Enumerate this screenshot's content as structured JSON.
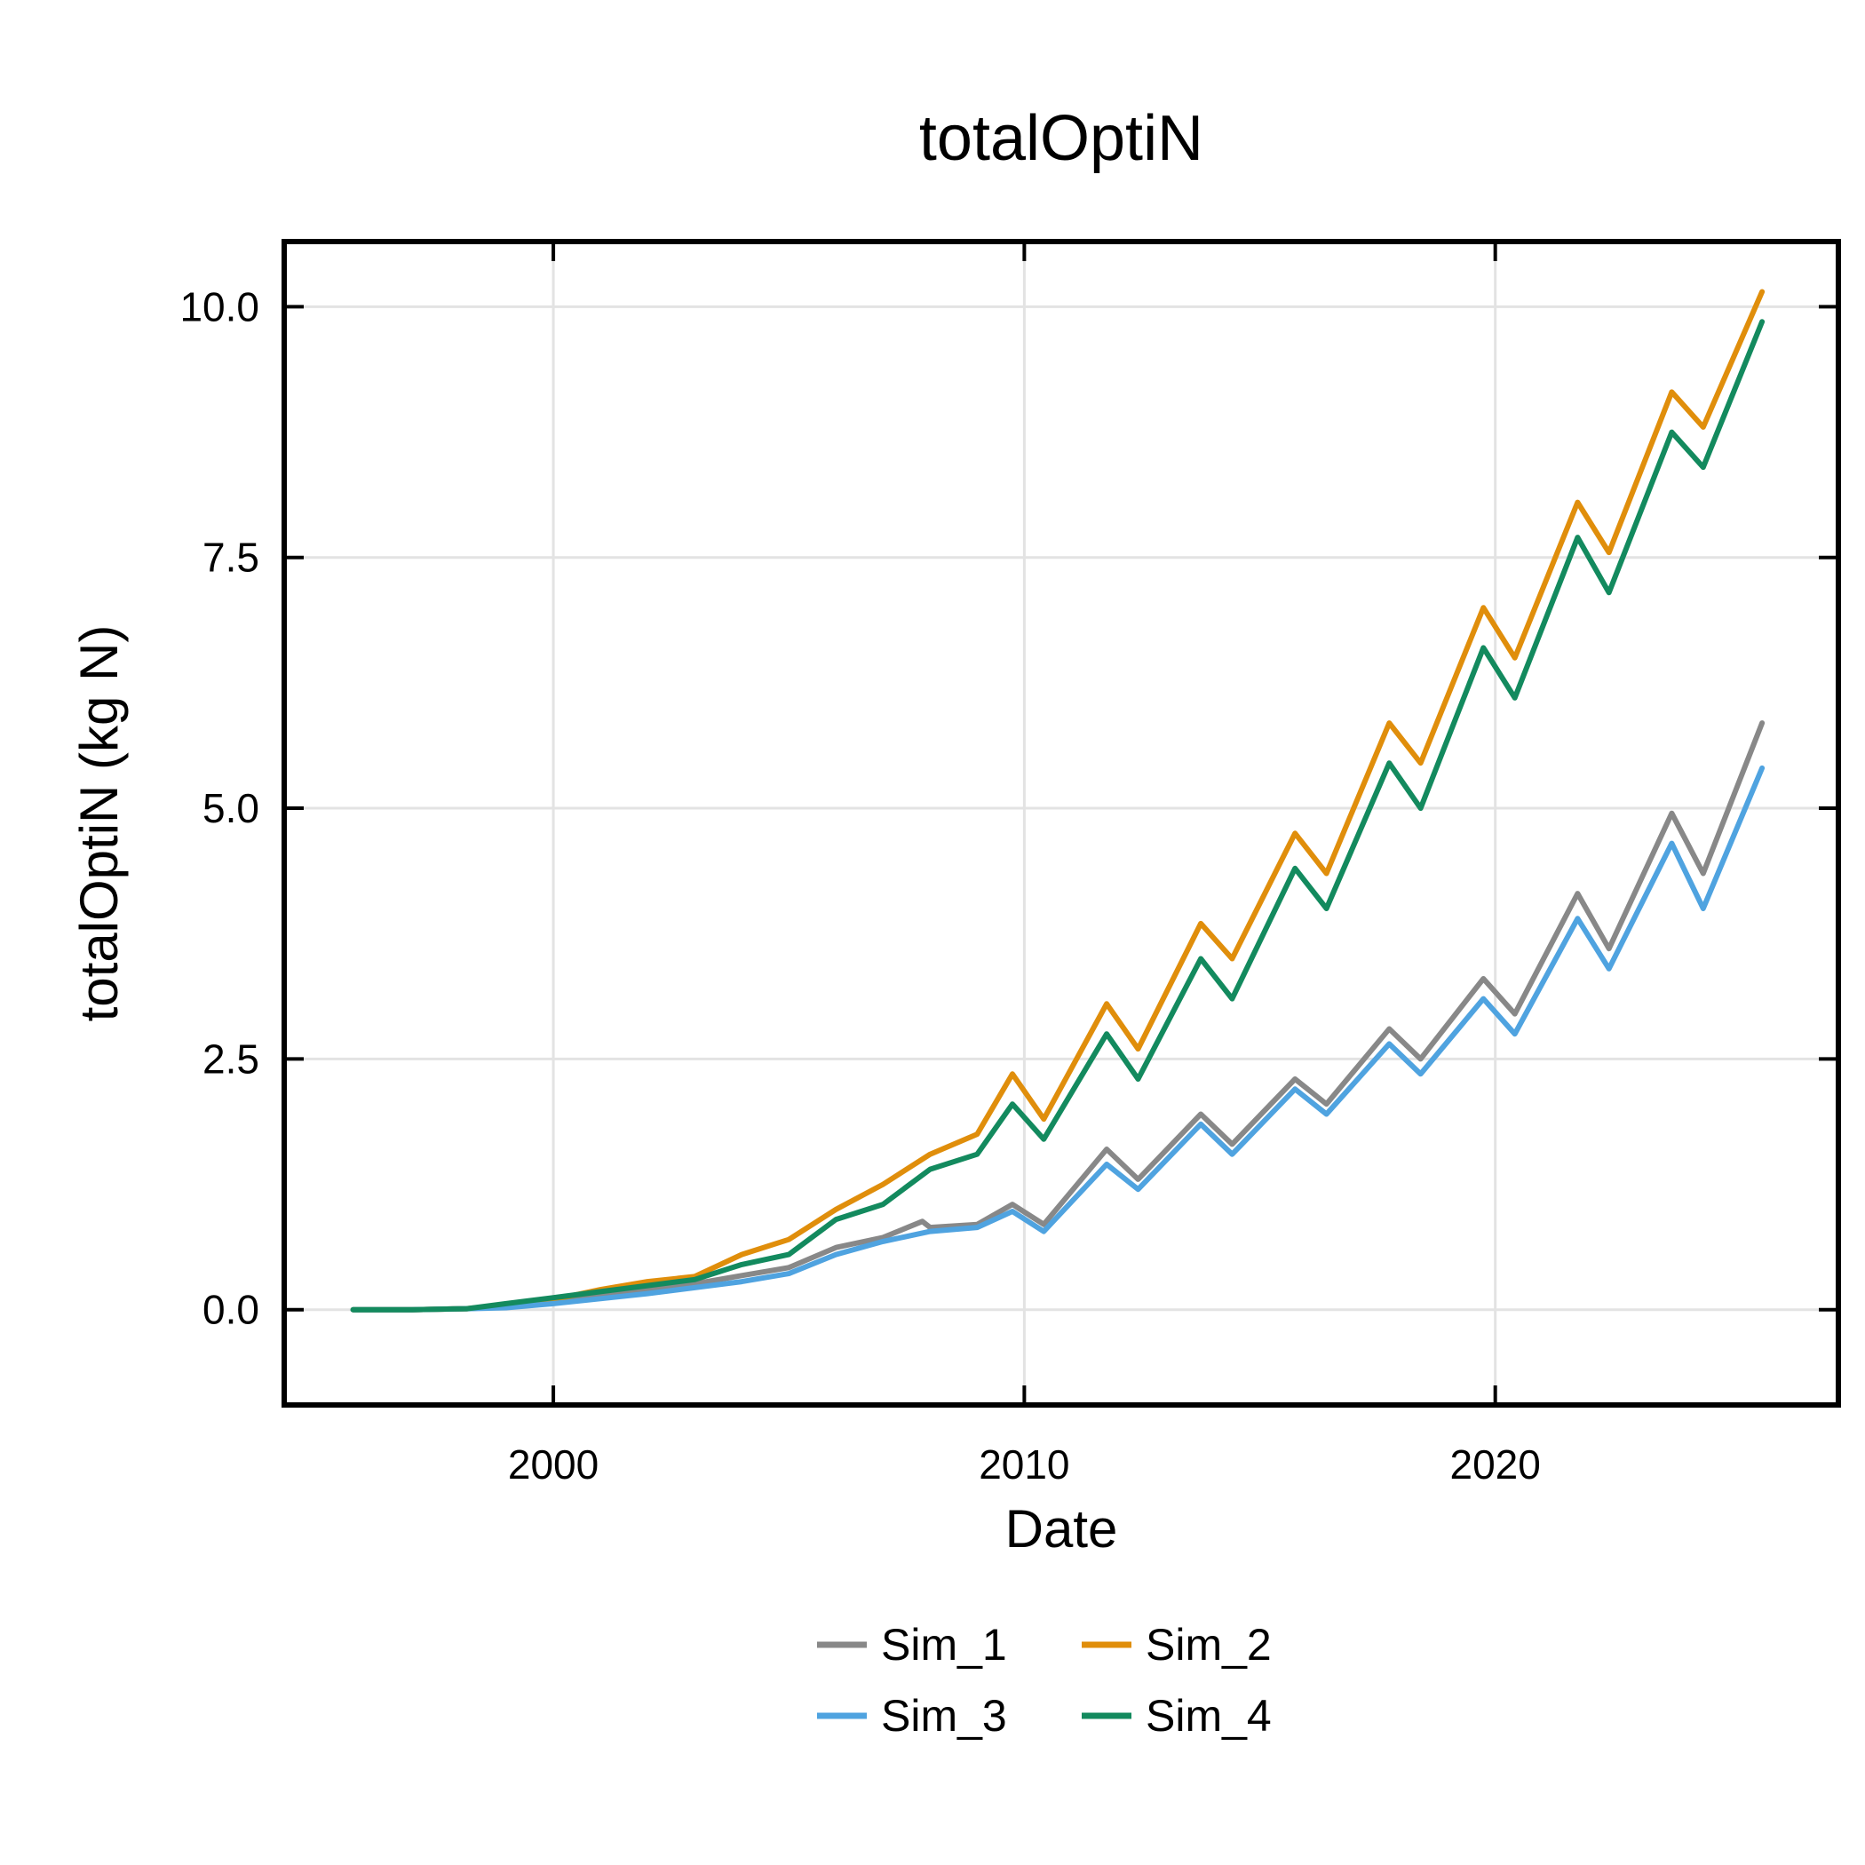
{
  "chart_data": {
    "type": "line",
    "title": "totalOptiN",
    "xlabel": "Date",
    "ylabel": "totalOptiN (kg N)",
    "x_axis": {
      "type": "date",
      "range": [
        "1994-04-15",
        "2027-04-15"
      ],
      "ticks": [
        "2000",
        "2010",
        "2020"
      ]
    },
    "y_axis": {
      "range": [
        -0.95,
        10.65
      ],
      "ticks": [
        "0.0",
        "2.5",
        "5.0",
        "7.5",
        "10.0"
      ]
    },
    "grid": true,
    "legend": {
      "position": "bottom-center",
      "columns": 2
    },
    "series": [
      {
        "name": "Sim_1",
        "color": "#888888",
        "points": [
          [
            "1995-10-01",
            0.0
          ],
          [
            "1997-01-01",
            0.0
          ],
          [
            "1998-03-01",
            0.01
          ],
          [
            "1999-01-01",
            0.03
          ],
          [
            "2000-01-01",
            0.08
          ],
          [
            "2001-01-01",
            0.13
          ],
          [
            "2002-01-01",
            0.2
          ],
          [
            "2003-01-01",
            0.26
          ],
          [
            "2004-01-01",
            0.34
          ],
          [
            "2005-01-01",
            0.42
          ],
          [
            "2006-01-01",
            0.62
          ],
          [
            "2007-01-01",
            0.72
          ],
          [
            "2007-11-01",
            0.88
          ],
          [
            "2008-01-01",
            0.82
          ],
          [
            "2009-01-01",
            0.85
          ],
          [
            "2009-10-01",
            1.05
          ],
          [
            "2010-06-01",
            0.85
          ],
          [
            "2011-10-01",
            1.6
          ],
          [
            "2012-06-01",
            1.3
          ],
          [
            "2013-10-01",
            1.95
          ],
          [
            "2014-06-01",
            1.65
          ],
          [
            "2015-10-01",
            2.3
          ],
          [
            "2016-06-01",
            2.05
          ],
          [
            "2017-10-01",
            2.8
          ],
          [
            "2018-06-01",
            2.5
          ],
          [
            "2019-10-01",
            3.3
          ],
          [
            "2020-06-01",
            2.95
          ],
          [
            "2021-10-01",
            4.15
          ],
          [
            "2022-06-01",
            3.6
          ],
          [
            "2023-10-01",
            4.95
          ],
          [
            "2024-06-01",
            4.35
          ],
          [
            "2025-09-01",
            5.85
          ]
        ]
      },
      {
        "name": "Sim_2",
        "color": "#E08E0B",
        "points": [
          [
            "1995-10-01",
            0.0
          ],
          [
            "1997-01-01",
            0.0
          ],
          [
            "1998-03-01",
            0.01
          ],
          [
            "1999-01-01",
            0.05
          ],
          [
            "2000-01-01",
            0.1
          ],
          [
            "2001-01-01",
            0.2
          ],
          [
            "2002-01-01",
            0.28
          ],
          [
            "2003-01-01",
            0.33
          ],
          [
            "2004-01-01",
            0.55
          ],
          [
            "2005-01-01",
            0.7
          ],
          [
            "2006-01-01",
            1.0
          ],
          [
            "2007-01-01",
            1.25
          ],
          [
            "2008-01-01",
            1.55
          ],
          [
            "2009-01-01",
            1.75
          ],
          [
            "2009-10-01",
            2.35
          ],
          [
            "2010-06-01",
            1.9
          ],
          [
            "2011-10-01",
            3.05
          ],
          [
            "2012-06-01",
            2.6
          ],
          [
            "2013-10-01",
            3.85
          ],
          [
            "2014-06-01",
            3.5
          ],
          [
            "2015-10-01",
            4.75
          ],
          [
            "2016-06-01",
            4.35
          ],
          [
            "2017-10-01",
            5.85
          ],
          [
            "2018-06-01",
            5.45
          ],
          [
            "2019-10-01",
            7.0
          ],
          [
            "2020-06-01",
            6.5
          ],
          [
            "2021-10-01",
            8.05
          ],
          [
            "2022-06-01",
            7.55
          ],
          [
            "2023-10-01",
            9.15
          ],
          [
            "2024-06-01",
            8.8
          ],
          [
            "2025-09-01",
            10.15
          ]
        ]
      },
      {
        "name": "Sim_3",
        "color": "#4FA3E0",
        "points": [
          [
            "1995-10-01",
            0.0
          ],
          [
            "1997-01-01",
            0.0
          ],
          [
            "1998-03-01",
            0.01
          ],
          [
            "1999-01-01",
            0.02
          ],
          [
            "2000-01-01",
            0.06
          ],
          [
            "2001-01-01",
            0.11
          ],
          [
            "2002-01-01",
            0.16
          ],
          [
            "2003-01-01",
            0.22
          ],
          [
            "2004-01-01",
            0.28
          ],
          [
            "2005-01-01",
            0.36
          ],
          [
            "2006-01-01",
            0.55
          ],
          [
            "2007-01-01",
            0.68
          ],
          [
            "2008-01-01",
            0.78
          ],
          [
            "2009-01-01",
            0.82
          ],
          [
            "2009-10-01",
            0.98
          ],
          [
            "2010-06-01",
            0.78
          ],
          [
            "2011-10-01",
            1.45
          ],
          [
            "2012-06-01",
            1.2
          ],
          [
            "2013-10-01",
            1.85
          ],
          [
            "2014-06-01",
            1.55
          ],
          [
            "2015-10-01",
            2.2
          ],
          [
            "2016-06-01",
            1.95
          ],
          [
            "2017-10-01",
            2.65
          ],
          [
            "2018-06-01",
            2.35
          ],
          [
            "2019-10-01",
            3.1
          ],
          [
            "2020-06-01",
            2.75
          ],
          [
            "2021-10-01",
            3.9
          ],
          [
            "2022-06-01",
            3.4
          ],
          [
            "2023-10-01",
            4.65
          ],
          [
            "2024-06-01",
            4.0
          ],
          [
            "2025-09-01",
            5.4
          ]
        ]
      },
      {
        "name": "Sim_4",
        "color": "#138A5E",
        "points": [
          [
            "1995-10-01",
            0.0
          ],
          [
            "1997-01-01",
            0.0
          ],
          [
            "1998-03-01",
            0.01
          ],
          [
            "1999-01-01",
            0.06
          ],
          [
            "2000-01-01",
            0.12
          ],
          [
            "2001-01-01",
            0.18
          ],
          [
            "2002-01-01",
            0.24
          ],
          [
            "2003-01-01",
            0.3
          ],
          [
            "2004-01-01",
            0.45
          ],
          [
            "2005-01-01",
            0.55
          ],
          [
            "2006-01-01",
            0.9
          ],
          [
            "2007-01-01",
            1.05
          ],
          [
            "2008-01-01",
            1.4
          ],
          [
            "2009-01-01",
            1.55
          ],
          [
            "2009-10-01",
            2.05
          ],
          [
            "2010-06-01",
            1.7
          ],
          [
            "2011-10-01",
            2.75
          ],
          [
            "2012-06-01",
            2.3
          ],
          [
            "2013-10-01",
            3.5
          ],
          [
            "2014-06-01",
            3.1
          ],
          [
            "2015-10-01",
            4.4
          ],
          [
            "2016-06-01",
            4.0
          ],
          [
            "2017-10-01",
            5.45
          ],
          [
            "2018-06-01",
            5.0
          ],
          [
            "2019-10-01",
            6.6
          ],
          [
            "2020-06-01",
            6.1
          ],
          [
            "2021-10-01",
            7.7
          ],
          [
            "2022-06-01",
            7.15
          ],
          [
            "2023-10-01",
            8.75
          ],
          [
            "2024-06-01",
            8.4
          ],
          [
            "2025-09-01",
            9.85
          ]
        ]
      }
    ]
  }
}
